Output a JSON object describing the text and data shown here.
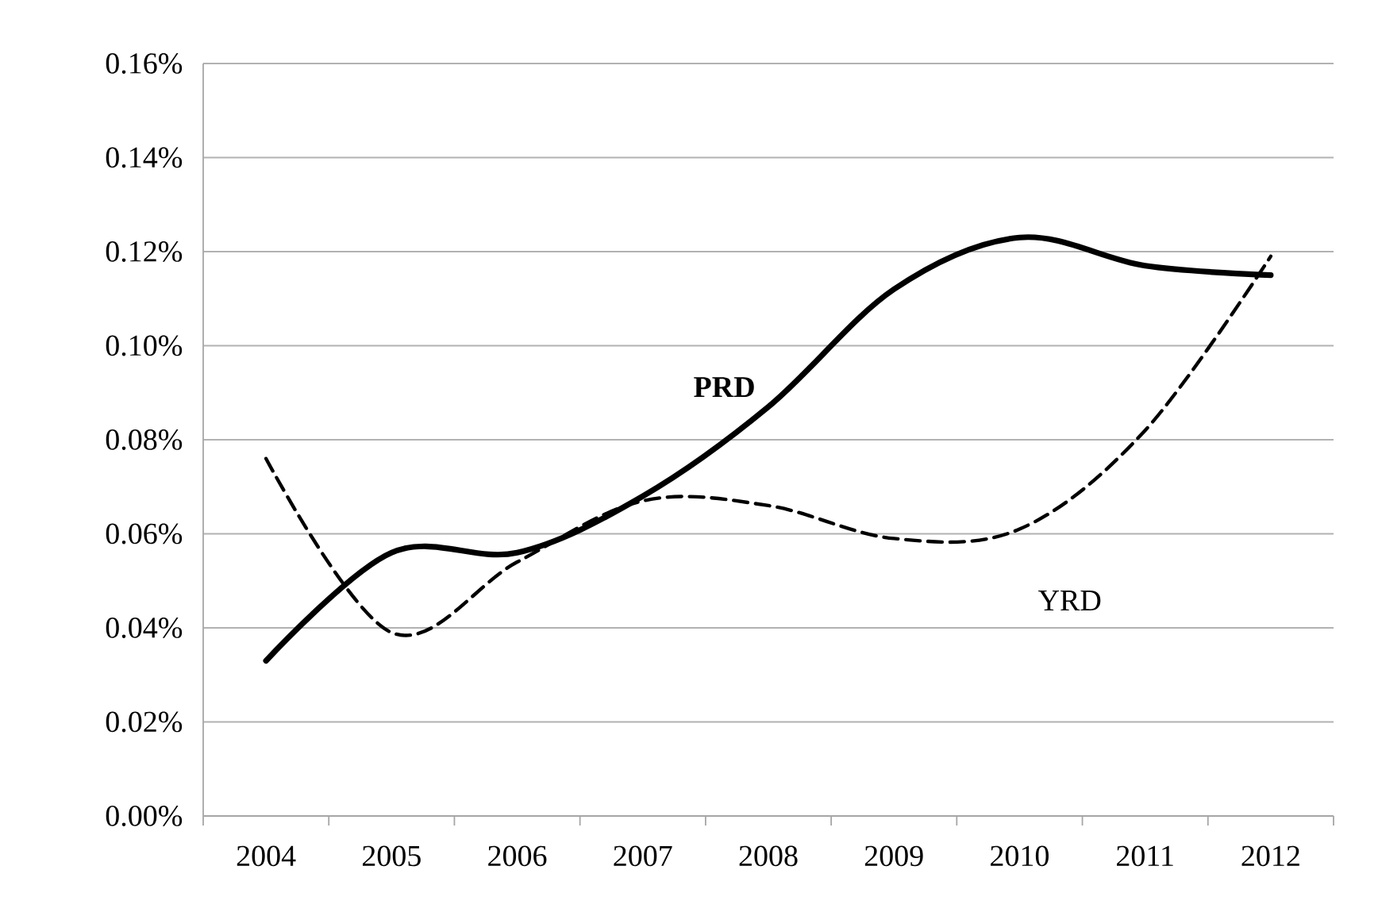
{
  "chart_data": {
    "type": "line",
    "categories": [
      "2004",
      "2005",
      "2006",
      "2007",
      "2008",
      "2009",
      "2010",
      "2011",
      "2012"
    ],
    "series": [
      {
        "name": "PRD",
        "color": "#000000",
        "line_style": "solid",
        "values": [
          0.033,
          0.056,
          0.056,
          0.068,
          0.087,
          0.112,
          0.123,
          0.117,
          0.115
        ]
      },
      {
        "name": "YRD",
        "color": "#000000",
        "line_style": "dashed",
        "values": [
          0.076,
          0.039,
          0.054,
          0.067,
          0.066,
          0.059,
          0.061,
          0.082,
          0.119
        ]
      }
    ],
    "ylim": [
      0,
      0.16
    ],
    "yticks": [
      {
        "value": 0,
        "label": "0.00%"
      },
      {
        "value": 0.02,
        "label": "0.02%"
      },
      {
        "value": 0.04,
        "label": "0.04%"
      },
      {
        "value": 0.06,
        "label": "0.06%"
      },
      {
        "value": 0.08,
        "label": "0.08%"
      },
      {
        "value": 0.1,
        "label": "0.10%"
      },
      {
        "value": 0.12,
        "label": "0.12%"
      },
      {
        "value": 0.14,
        "label": "0.14%"
      },
      {
        "value": 0.16,
        "label": "0.16%"
      }
    ],
    "grid": "y",
    "marker": "none"
  }
}
